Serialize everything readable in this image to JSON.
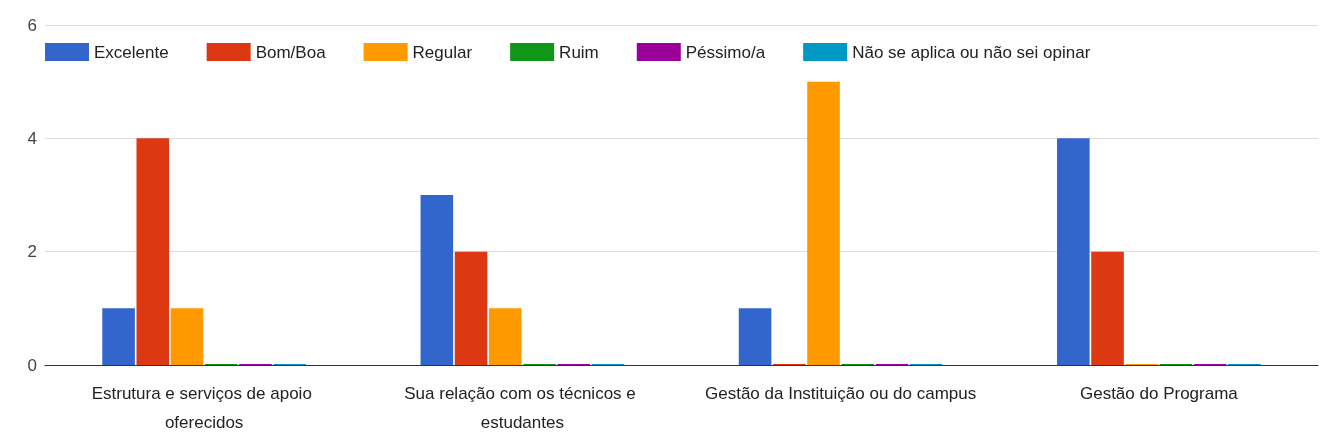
{
  "chart_data": {
    "type": "bar",
    "categories": [
      "Estrutura e serviços de apoio oferecidos",
      "Sua relação com os técnicos e estudantes",
      "Gestão da Instituição ou do campus",
      "Gestão do Programa"
    ],
    "series": [
      {
        "name": "Excelente",
        "color": "#3366cc",
        "values": [
          1,
          3,
          1,
          4
        ]
      },
      {
        "name": "Bom/Boa",
        "color": "#dc3912",
        "values": [
          4,
          2,
          0,
          2
        ]
      },
      {
        "name": "Regular",
        "color": "#ff9900",
        "values": [
          1,
          1,
          5,
          0
        ]
      },
      {
        "name": "Ruim",
        "color": "#109618",
        "values": [
          0,
          0,
          0,
          0
        ]
      },
      {
        "name": "Péssimo/a",
        "color": "#990099",
        "values": [
          0,
          0,
          0,
          0
        ]
      },
      {
        "name": "Não se aplica ou não sei opinar",
        "color": "#0099c6",
        "values": [
          0,
          0,
          0,
          0
        ]
      }
    ],
    "ylim": [
      0,
      6
    ],
    "yticks": [
      0,
      2,
      4,
      6
    ],
    "grid": "y",
    "legend": "top left"
  }
}
